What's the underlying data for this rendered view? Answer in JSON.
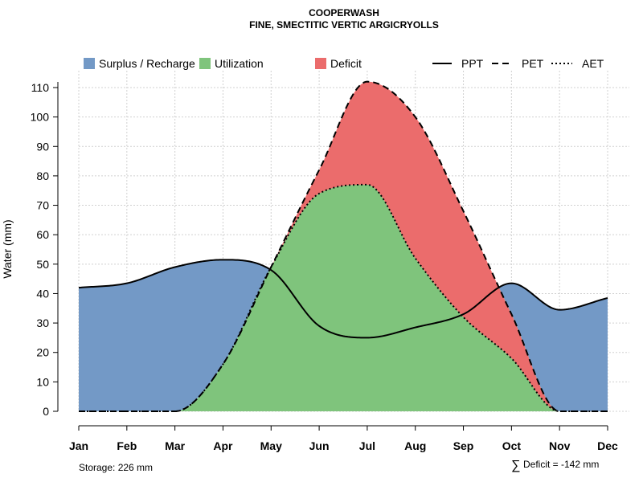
{
  "chart_data": {
    "type": "area",
    "title": "COOPERWASH",
    "subtitle": "FINE, SMECTITIC VERTIC ARGICRYOLLS",
    "ylabel": "Water (mm)",
    "xlabel": "",
    "ylim": [
      0,
      115
    ],
    "yticks": [
      0,
      10,
      20,
      30,
      40,
      50,
      60,
      70,
      80,
      90,
      100,
      110
    ],
    "grid": true,
    "categories": [
      "Jan",
      "Feb",
      "Mar",
      "Apr",
      "May",
      "Jun",
      "Jul",
      "Aug",
      "Sep",
      "Oct",
      "Nov",
      "Dec"
    ],
    "series": [
      {
        "name": "PPT",
        "line_style": "solid",
        "values": [
          42,
          43.5,
          49,
          51.5,
          48,
          29,
          25,
          28.5,
          33,
          43.5,
          34.5,
          38.5
        ]
      },
      {
        "name": "PET",
        "line_style": "dashed",
        "values": [
          0,
          0,
          0,
          16,
          49,
          82,
          112,
          100,
          68,
          33,
          0,
          0
        ]
      },
      {
        "name": "AET",
        "line_style": "dotted",
        "values": [
          0,
          0,
          0,
          16,
          49,
          74,
          77,
          52,
          32,
          18,
          0,
          0
        ]
      }
    ],
    "legend": {
      "placement": "top",
      "fill_items": [
        {
          "label": "Surplus / Recharge",
          "color": "#7399C6"
        },
        {
          "label": "Utilization",
          "color": "#7FC47C"
        },
        {
          "label": "Deficit",
          "color": "#EB6C6C"
        }
      ],
      "line_items": [
        {
          "label": "PPT",
          "style": "solid"
        },
        {
          "label": "PET",
          "style": "dashed"
        },
        {
          "label": "AET",
          "style": "dotted"
        }
      ]
    },
    "annotations": {
      "storage": "Storage: 226 mm",
      "deficit_symbol": "∑",
      "deficit": "Deficit = -142 mm"
    }
  }
}
